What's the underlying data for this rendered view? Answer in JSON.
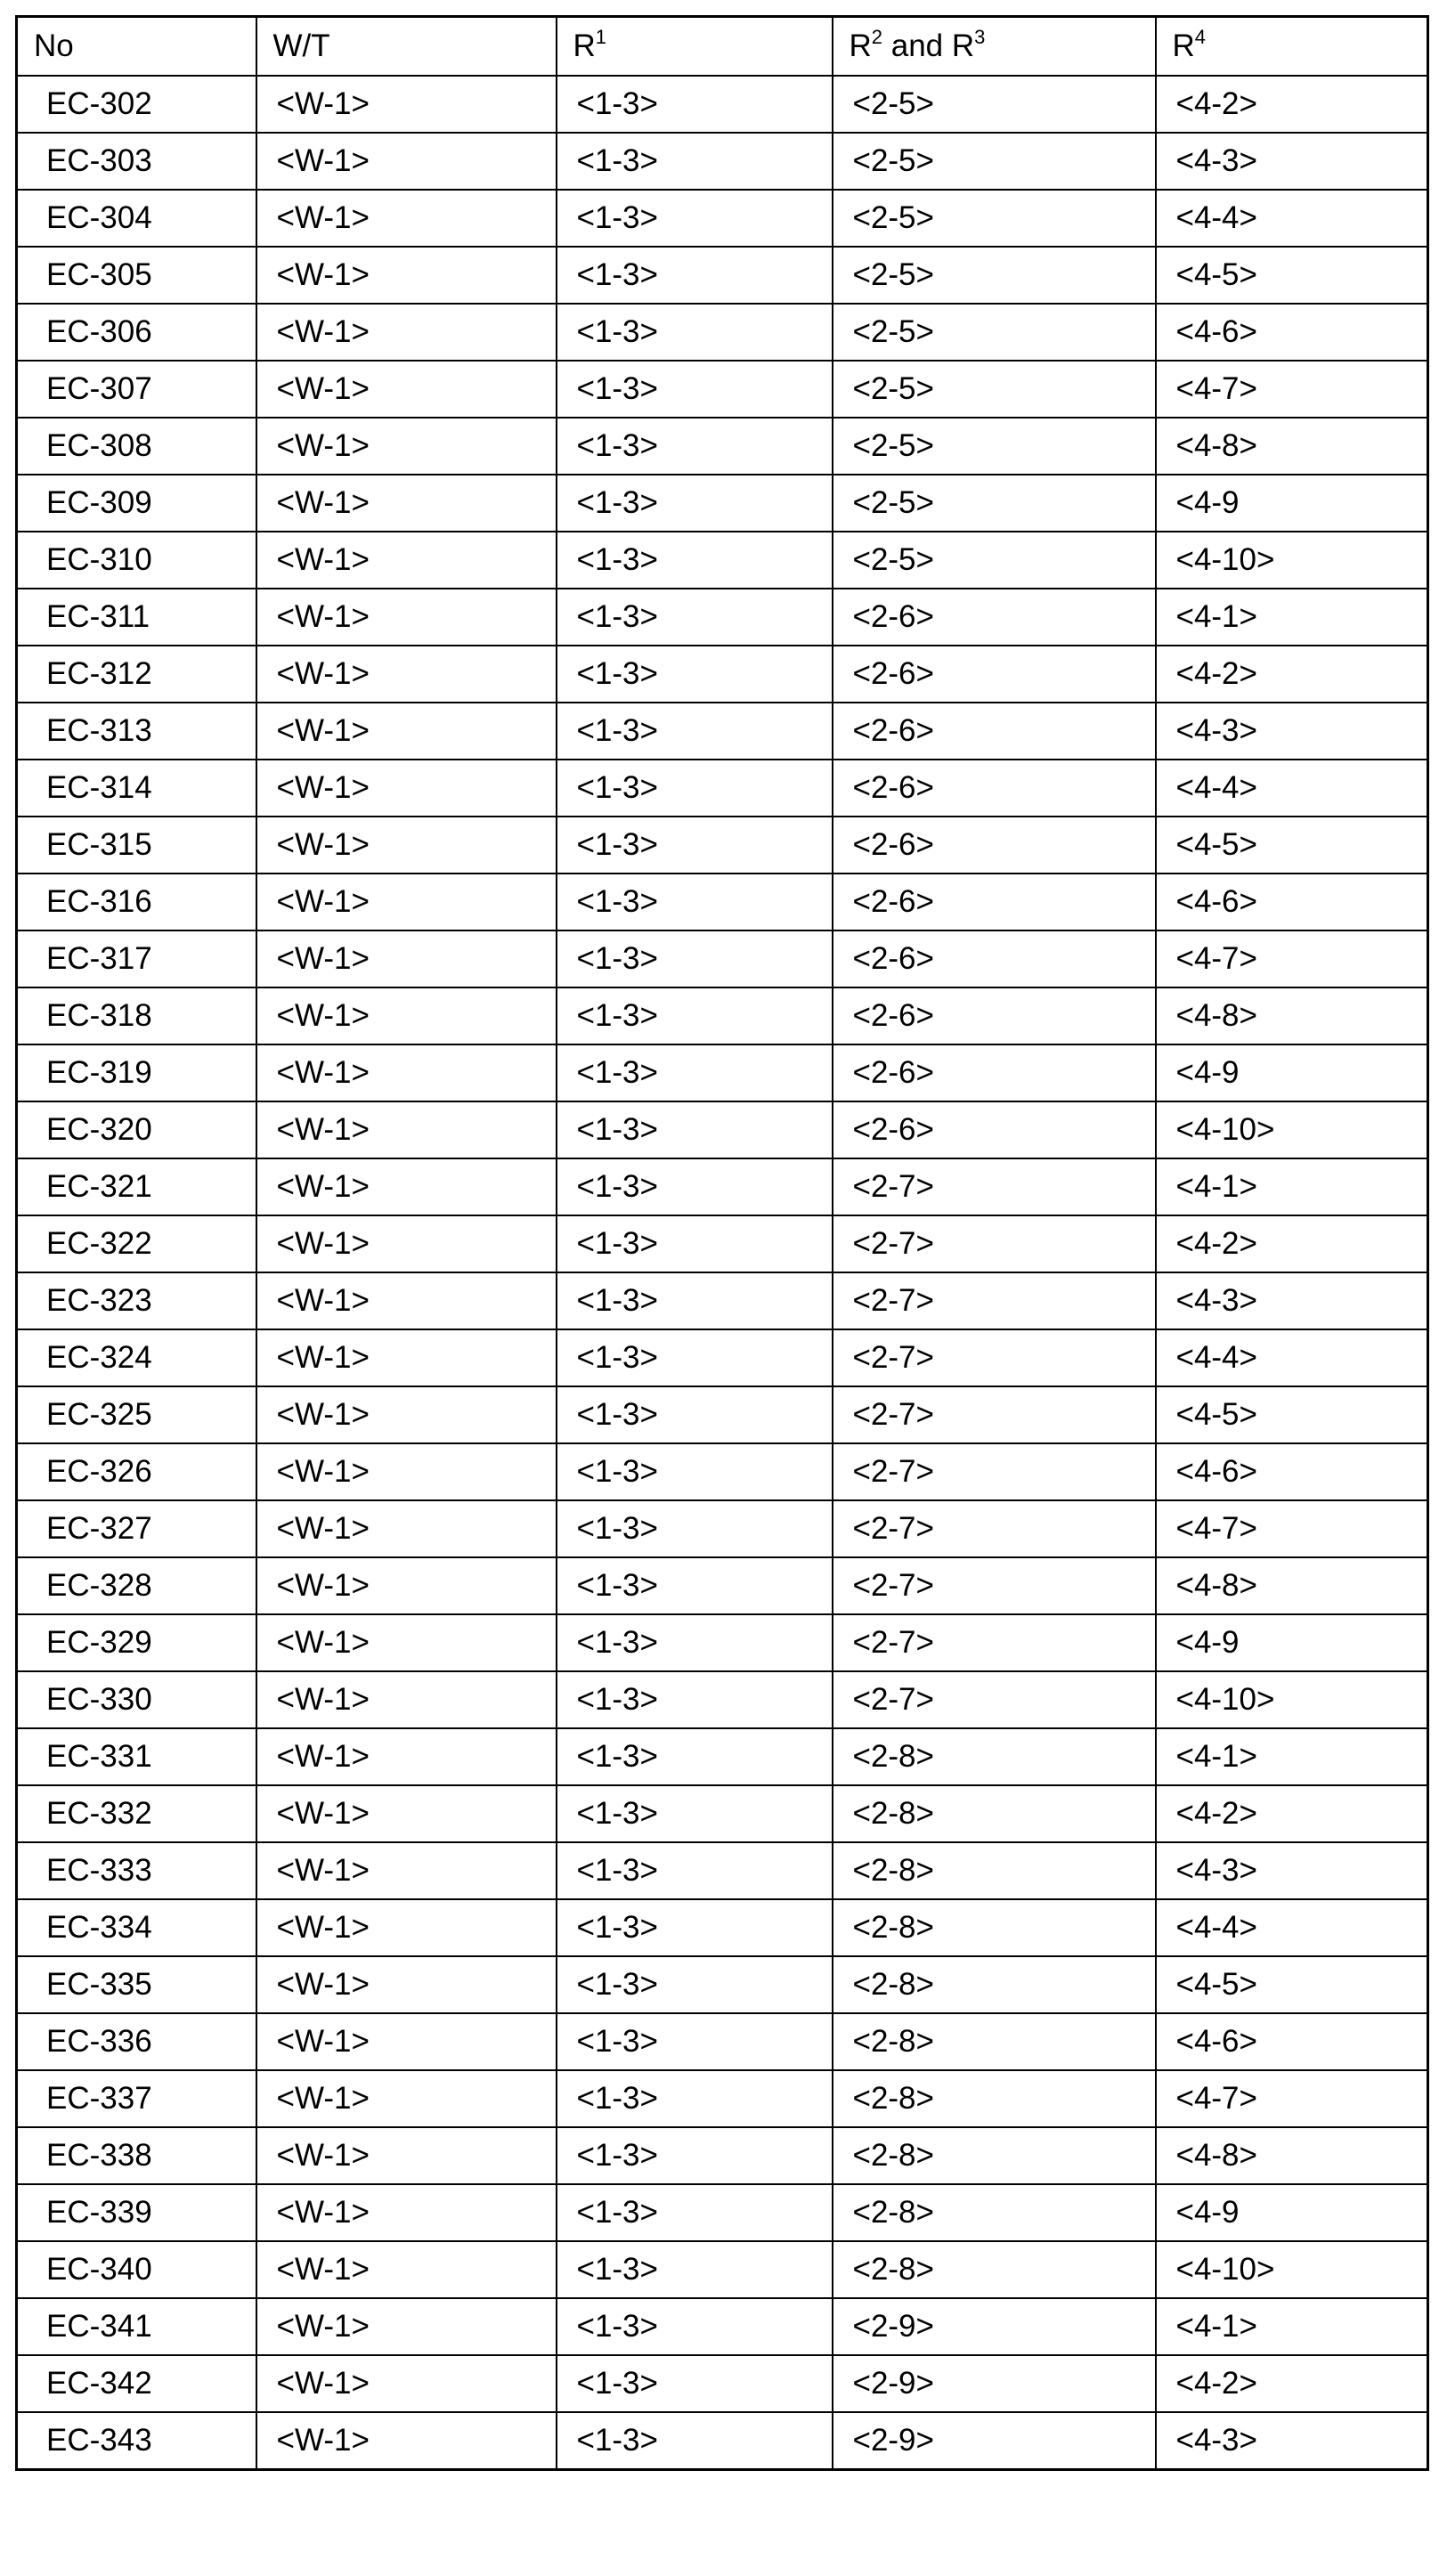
{
  "table": {
    "headers": [
      {
        "base": "No",
        "sup": ""
      },
      {
        "base": "W/T",
        "sup": ""
      },
      {
        "base": "R",
        "sup": "1"
      },
      {
        "base": "R",
        "sup": "2",
        "mid": " and R",
        "sup2": "3"
      },
      {
        "base": "R",
        "sup": "4"
      }
    ],
    "rows": [
      [
        "EC-302",
        "<W-1>",
        "<1-3>",
        "<2-5>",
        "<4-2>"
      ],
      [
        "EC-303",
        "<W-1>",
        "<1-3>",
        "<2-5>",
        "<4-3>"
      ],
      [
        "EC-304",
        "<W-1>",
        "<1-3>",
        "<2-5>",
        "<4-4>"
      ],
      [
        "EC-305",
        "<W-1>",
        "<1-3>",
        "<2-5>",
        "<4-5>"
      ],
      [
        "EC-306",
        "<W-1>",
        "<1-3>",
        "<2-5>",
        "<4-6>"
      ],
      [
        "EC-307",
        "<W-1>",
        "<1-3>",
        "<2-5>",
        "<4-7>"
      ],
      [
        "EC-308",
        "<W-1>",
        "<1-3>",
        "<2-5>",
        "<4-8>"
      ],
      [
        "EC-309",
        "<W-1>",
        "<1-3>",
        "<2-5>",
        "<4-9"
      ],
      [
        "EC-310",
        "<W-1>",
        "<1-3>",
        "<2-5>",
        "<4-10>"
      ],
      [
        "EC-311",
        "<W-1>",
        "<1-3>",
        "<2-6>",
        "<4-1>"
      ],
      [
        "EC-312",
        "<W-1>",
        "<1-3>",
        "<2-6>",
        "<4-2>"
      ],
      [
        "EC-313",
        "<W-1>",
        "<1-3>",
        "<2-6>",
        "<4-3>"
      ],
      [
        "EC-314",
        "<W-1>",
        "<1-3>",
        "<2-6>",
        "<4-4>"
      ],
      [
        "EC-315",
        "<W-1>",
        "<1-3>",
        "<2-6>",
        "<4-5>"
      ],
      [
        "EC-316",
        "<W-1>",
        "<1-3>",
        "<2-6>",
        "<4-6>"
      ],
      [
        "EC-317",
        "<W-1>",
        "<1-3>",
        "<2-6>",
        "<4-7>"
      ],
      [
        "EC-318",
        "<W-1>",
        "<1-3>",
        "<2-6>",
        "<4-8>"
      ],
      [
        "EC-319",
        "<W-1>",
        "<1-3>",
        "<2-6>",
        "<4-9"
      ],
      [
        "EC-320",
        "<W-1>",
        "<1-3>",
        "<2-6>",
        "<4-10>"
      ],
      [
        "EC-321",
        "<W-1>",
        "<1-3>",
        "<2-7>",
        "<4-1>"
      ],
      [
        "EC-322",
        "<W-1>",
        "<1-3>",
        "<2-7>",
        "<4-2>"
      ],
      [
        "EC-323",
        "<W-1>",
        "<1-3>",
        "<2-7>",
        "<4-3>"
      ],
      [
        "EC-324",
        "<W-1>",
        "<1-3>",
        "<2-7>",
        "<4-4>"
      ],
      [
        "EC-325",
        "<W-1>",
        "<1-3>",
        "<2-7>",
        "<4-5>"
      ],
      [
        "EC-326",
        "<W-1>",
        "<1-3>",
        "<2-7>",
        "<4-6>"
      ],
      [
        "EC-327",
        "<W-1>",
        "<1-3>",
        "<2-7>",
        "<4-7>"
      ],
      [
        "EC-328",
        "<W-1>",
        "<1-3>",
        "<2-7>",
        "<4-8>"
      ],
      [
        "EC-329",
        "<W-1>",
        "<1-3>",
        "<2-7>",
        "<4-9"
      ],
      [
        "EC-330",
        "<W-1>",
        "<1-3>",
        "<2-7>",
        "<4-10>"
      ],
      [
        "EC-331",
        "<W-1>",
        "<1-3>",
        "<2-8>",
        "<4-1>"
      ],
      [
        "EC-332",
        "<W-1>",
        "<1-3>",
        "<2-8>",
        "<4-2>"
      ],
      [
        "EC-333",
        "<W-1>",
        "<1-3>",
        "<2-8>",
        "<4-3>"
      ],
      [
        "EC-334",
        "<W-1>",
        "<1-3>",
        "<2-8>",
        "<4-4>"
      ],
      [
        "EC-335",
        "<W-1>",
        "<1-3>",
        "<2-8>",
        "<4-5>"
      ],
      [
        "EC-336",
        "<W-1>",
        "<1-3>",
        "<2-8>",
        "<4-6>"
      ],
      [
        "EC-337",
        "<W-1>",
        "<1-3>",
        "<2-8>",
        "<4-7>"
      ],
      [
        "EC-338",
        "<W-1>",
        "<1-3>",
        "<2-8>",
        "<4-8>"
      ],
      [
        "EC-339",
        "<W-1>",
        "<1-3>",
        "<2-8>",
        "<4-9"
      ],
      [
        "EC-340",
        "<W-1>",
        "<1-3>",
        "<2-8>",
        "<4-10>"
      ],
      [
        "EC-341",
        "<W-1>",
        "<1-3>",
        "<2-9>",
        "<4-1>"
      ],
      [
        "EC-342",
        "<W-1>",
        "<1-3>",
        "<2-9>",
        "<4-2>"
      ],
      [
        "EC-343",
        "<W-1>",
        "<1-3>",
        "<2-9>",
        "<4-3>"
      ]
    ]
  }
}
